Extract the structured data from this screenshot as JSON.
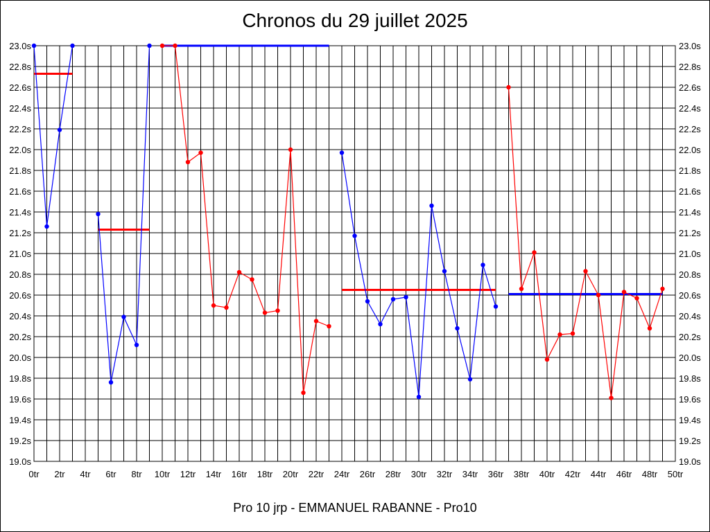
{
  "chart_data": {
    "type": "line",
    "title": "Chronos du 29 juillet 2025",
    "subtitle": "Pro 10 jrp - EMMANUEL RABANNE - Pro10",
    "x_tick_labels": [
      "0tr",
      "2tr",
      "4tr",
      "6tr",
      "8tr",
      "10tr",
      "12tr",
      "14tr",
      "16tr",
      "18tr",
      "20tr",
      "22tr",
      "24tr",
      "26tr",
      "28tr",
      "30tr",
      "32tr",
      "34tr",
      "36tr",
      "38tr",
      "40tr",
      "42tr",
      "44tr",
      "46tr",
      "48tr",
      "50tr"
    ],
    "y_tick_labels": [
      "19.0s",
      "19.2s",
      "19.4s",
      "19.6s",
      "19.8s",
      "20.0s",
      "20.2s",
      "20.4s",
      "20.6s",
      "20.8s",
      "21.0s",
      "21.2s",
      "21.4s",
      "21.6s",
      "21.8s",
      "22.0s",
      "22.2s",
      "22.4s",
      "22.6s",
      "22.8s",
      "23.0s"
    ],
    "xlim": [
      0,
      50
    ],
    "ylim": [
      19.0,
      23.0
    ],
    "grid": true,
    "colors": {
      "blue": "#0000ff",
      "red": "#ff0000"
    },
    "series": [
      {
        "color": "blue",
        "x": [
          0,
          1,
          2,
          3
        ],
        "y": [
          23.0,
          21.26,
          22.19,
          23.0
        ]
      },
      {
        "color": "blue",
        "x": [
          5,
          6,
          7,
          8,
          9
        ],
        "y": [
          21.38,
          19.76,
          20.39,
          20.12,
          23.0
        ]
      },
      {
        "color": "red",
        "x": [
          10,
          11,
          12,
          13,
          14,
          15,
          16,
          17,
          18,
          19,
          20,
          21,
          22,
          23
        ],
        "y": [
          23.0,
          23.0,
          21.88,
          21.97,
          20.5,
          20.48,
          20.82,
          20.75,
          20.43,
          20.45,
          22.0,
          19.66,
          20.35,
          20.3
        ]
      },
      {
        "color": "blue",
        "x": [
          24,
          25,
          26,
          27,
          28,
          29,
          30,
          31,
          32,
          33,
          34,
          35,
          36
        ],
        "y": [
          21.97,
          21.17,
          20.54,
          20.32,
          20.56,
          20.58,
          19.62,
          21.46,
          20.83,
          20.28,
          19.79,
          20.89,
          20.49
        ]
      },
      {
        "color": "red",
        "x": [
          37,
          38,
          39,
          40,
          41,
          42,
          43,
          44,
          45,
          46,
          47,
          48,
          49
        ],
        "y": [
          22.6,
          20.66,
          21.01,
          19.98,
          20.22,
          20.23,
          20.83,
          20.6,
          19.61,
          20.63,
          20.57,
          20.28,
          20.66
        ]
      }
    ],
    "averages": [
      {
        "color": "red",
        "x0": 0,
        "x1": 3,
        "y": 22.73
      },
      {
        "color": "red",
        "x0": 5,
        "x1": 9,
        "y": 21.23
      },
      {
        "color": "blue",
        "x0": 10,
        "x1": 23,
        "y": 23.0
      },
      {
        "color": "red",
        "x0": 24,
        "x1": 36,
        "y": 20.65
      },
      {
        "color": "blue",
        "x0": 37,
        "x1": 49,
        "y": 20.61
      }
    ]
  }
}
